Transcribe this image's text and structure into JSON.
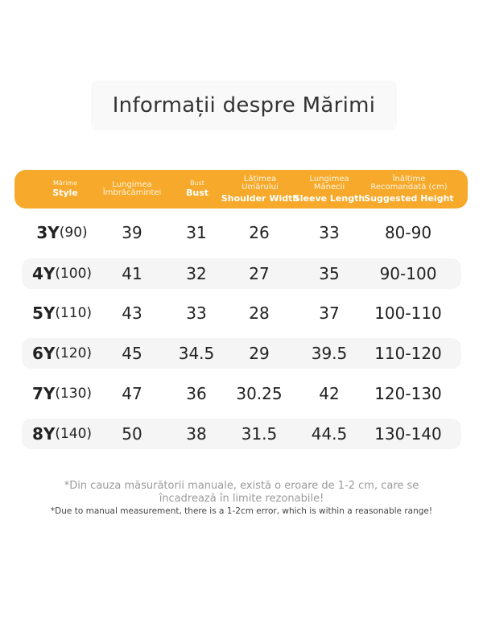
{
  "title": "Informații despre Mărimi",
  "header": [
    {
      "ro": "Mărime",
      "en": "Style",
      "small": true
    },
    {
      "ro": "Lungimea\nÎmbrăcămintei",
      "en": ""
    },
    {
      "ro": "Bust",
      "en": "Bust",
      "small": true
    },
    {
      "ro": "Lățimea\nUmărului",
      "en": "Shoulder Width"
    },
    {
      "ro": "Lungimea\nMânecii",
      "en": "Sleeve Length"
    },
    {
      "ro": "Înălțime\nRecomandată (cm)",
      "en": "Suggested Height"
    }
  ],
  "rows": [
    {
      "size": "3Y",
      "size_cm": "(90)",
      "length": "39",
      "bust": "31",
      "shoulder": "26",
      "sleeve": "33",
      "height": "80-90"
    },
    {
      "size": "4Y",
      "size_cm": "(100)",
      "length": "41",
      "bust": "32",
      "shoulder": "27",
      "sleeve": "35",
      "height": "90-100"
    },
    {
      "size": "5Y",
      "size_cm": "(110)",
      "length": "43",
      "bust": "33",
      "shoulder": "28",
      "sleeve": "37",
      "height": "100-110"
    },
    {
      "size": "6Y",
      "size_cm": "(120)",
      "length": "45",
      "bust": "34.5",
      "shoulder": "29",
      "sleeve": "39.5",
      "height": "110-120"
    },
    {
      "size": "7Y",
      "size_cm": "(130)",
      "length": "47",
      "bust": "36",
      "shoulder": "30.25",
      "sleeve": "42",
      "height": "120-130"
    },
    {
      "size": "8Y",
      "size_cm": "(140)",
      "length": "50",
      "bust": "38",
      "shoulder": "31.5",
      "sleeve": "44.5",
      "height": "130-140"
    }
  ],
  "notes": {
    "ro_line1": "*Din cauza măsurătorii manuale, există o eroare de 1-2 cm, care se",
    "ro_line2": "încadrează în limite rezonabile!",
    "en": "*Due to manual measurement, there is a 1-2cm error, which is within a reasonable range!"
  },
  "colors": {
    "header_bg": "#f6a92a",
    "row_shade": "#f5f5f5",
    "text": "#222222",
    "note": "#9a9a9a"
  }
}
